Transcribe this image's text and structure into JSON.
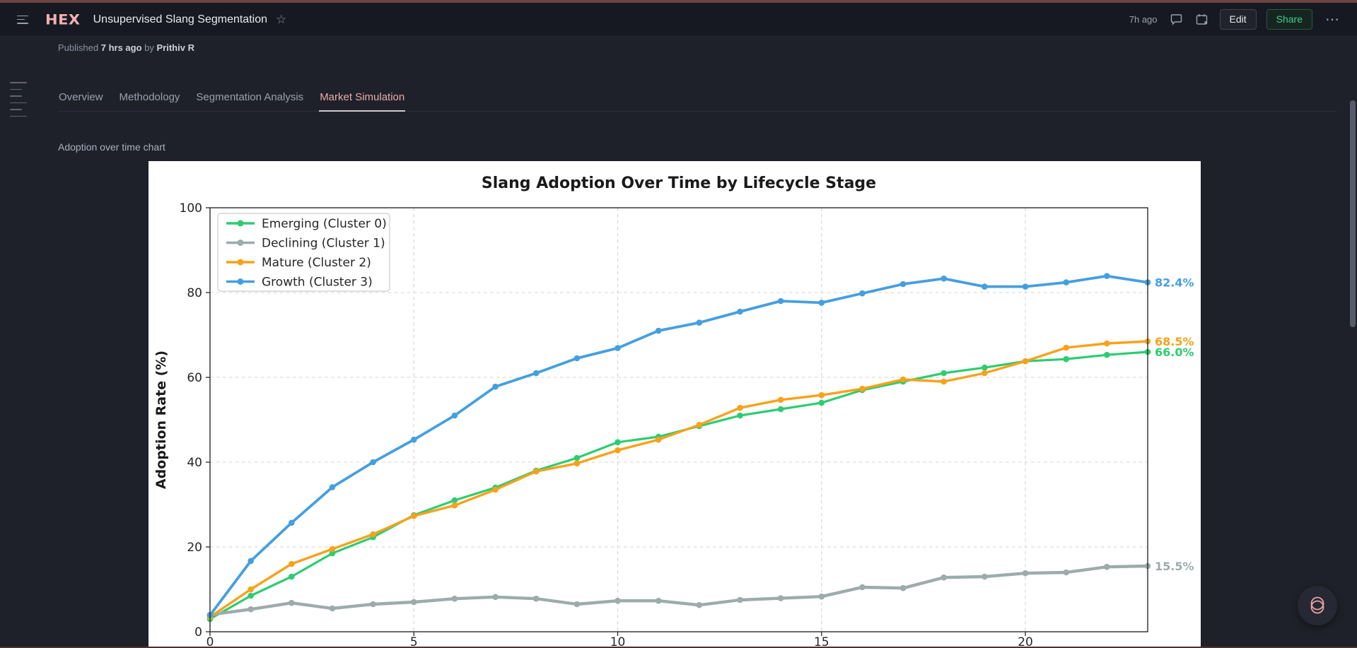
{
  "header": {
    "logo": "HEX",
    "title": "Unsupervised Slang Segmentation",
    "updated": "7h ago",
    "edit_label": "Edit",
    "share_label": "Share",
    "star_icon": "☆",
    "more_icon": "⋯"
  },
  "published_bar": {
    "prefix": "Published",
    "time": "7 hrs ago",
    "by": "by",
    "author": "Prithiv R"
  },
  "tabs": [
    {
      "label": "Overview",
      "active": false
    },
    {
      "label": "Methodology",
      "active": false
    },
    {
      "label": "Segmentation Analysis",
      "active": false
    },
    {
      "label": "Market Simulation",
      "active": true
    }
  ],
  "section_label": "Adoption over time chart",
  "chart_data": {
    "type": "line",
    "title": "Slang Adoption Over Time by Lifecycle Stage",
    "xlabel": "",
    "ylabel": "Adoption Rate (%)",
    "xlim": [
      0,
      23
    ],
    "ylim": [
      0,
      100
    ],
    "xticks": [
      0,
      5,
      10,
      15,
      20
    ],
    "yticks": [
      0,
      20,
      40,
      60,
      80,
      100
    ],
    "grid": true,
    "legend_position": "upper-left",
    "x": [
      0,
      1,
      2,
      3,
      4,
      5,
      6,
      7,
      8,
      9,
      10,
      11,
      12,
      13,
      14,
      15,
      16,
      17,
      18,
      19,
      20,
      21,
      22,
      23
    ],
    "series": [
      {
        "name": "Emerging (Cluster 0)",
        "color": "#2ecc71",
        "line_width": 3.2,
        "end_label": "66.0%",
        "values": [
          3.0,
          8.5,
          13.0,
          18.5,
          22.3,
          27.5,
          31.0,
          34.0,
          38.0,
          41.0,
          44.7,
          46.0,
          48.5,
          51.0,
          52.5,
          54.0,
          57.0,
          59.0,
          61.0,
          62.3,
          63.8,
          64.3,
          65.3,
          66.0
        ]
      },
      {
        "name": "Declining (Cluster 1)",
        "color": "#9dabab",
        "line_width": 4.4,
        "end_label": "15.5%",
        "values": [
          4.0,
          5.3,
          6.8,
          5.5,
          6.5,
          7.0,
          7.8,
          8.2,
          7.8,
          6.5,
          7.3,
          7.3,
          6.3,
          7.5,
          7.9,
          8.3,
          10.5,
          10.3,
          12.8,
          13.0,
          13.8,
          14.0,
          15.3,
          15.5
        ]
      },
      {
        "name": "Mature (Cluster 2)",
        "color": "#f7a21b",
        "line_width": 3.4,
        "end_label": "68.5%",
        "values": [
          3.5,
          10.0,
          16.0,
          19.5,
          23.0,
          27.3,
          29.8,
          33.5,
          37.8,
          39.7,
          42.8,
          45.3,
          48.8,
          52.8,
          54.7,
          55.8,
          57.3,
          59.5,
          59.0,
          61.0,
          63.8,
          67.0,
          68.0,
          68.5
        ]
      },
      {
        "name": "Growth (Cluster 3)",
        "color": "#459fdf",
        "line_width": 3.8,
        "end_label": "82.4%",
        "values": [
          3.9,
          16.7,
          25.7,
          34.1,
          40.0,
          45.3,
          51.0,
          57.8,
          61.0,
          64.5,
          66.9,
          71.0,
          72.9,
          75.5,
          78.0,
          77.6,
          79.8,
          82.0,
          83.3,
          81.4,
          81.4,
          82.4,
          83.9,
          82.4
        ]
      }
    ]
  }
}
